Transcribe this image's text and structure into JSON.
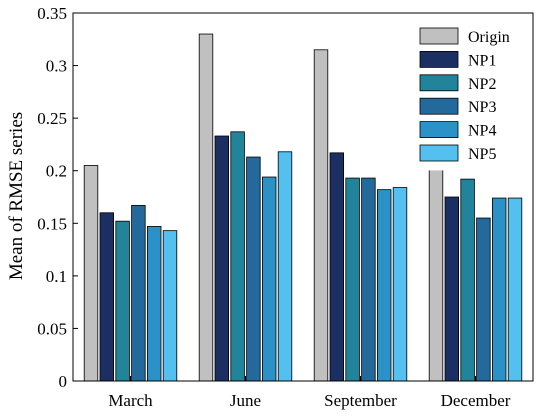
{
  "chart_data": {
    "type": "bar",
    "categories": [
      "March",
      "June",
      "September",
      "December"
    ],
    "series": [
      {
        "name": "Origin",
        "color": "#c0c0c0",
        "values": [
          0.205,
          0.33,
          0.315,
          0.23
        ]
      },
      {
        "name": "NP1",
        "color": "#1b2f63",
        "values": [
          0.16,
          0.233,
          0.217,
          0.175
        ]
      },
      {
        "name": "NP2",
        "color": "#21849b",
        "values": [
          0.152,
          0.237,
          0.193,
          0.192
        ]
      },
      {
        "name": "NP3",
        "color": "#23699c",
        "values": [
          0.167,
          0.213,
          0.193,
          0.155
        ]
      },
      {
        "name": "NP4",
        "color": "#2a92c6",
        "values": [
          0.147,
          0.194,
          0.182,
          0.174
        ]
      },
      {
        "name": "NP5",
        "color": "#54c0f0",
        "values": [
          0.143,
          0.218,
          0.184,
          0.174
        ]
      }
    ],
    "xlabel": "",
    "ylabel": "Mean of RMSE series",
    "ylim": [
      0,
      0.35
    ],
    "yticks": [
      "0",
      "0.05",
      "0.1",
      "0.15",
      "0.2",
      "0.25",
      "0.3",
      "0.35"
    ],
    "grid": false,
    "legend_position": "top-right"
  }
}
